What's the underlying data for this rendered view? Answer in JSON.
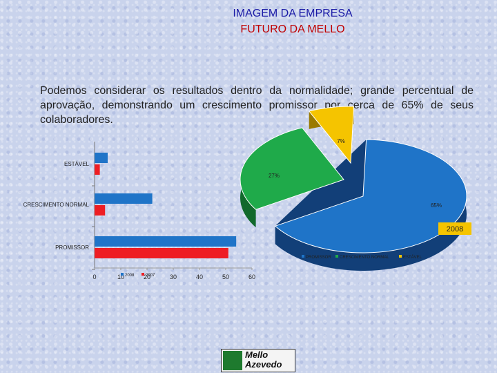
{
  "header": {
    "title": "IMAGEM DA EMPRESA",
    "subtitle": "FUTURO DA MELLO"
  },
  "body_text": "Podemos considerar os resultados dentro da normalidade; grande percentual de aprovação, demonstrando um crescimento promissor por cerca de 65% de seus colaboradores.",
  "logo": {
    "line1": "Mello",
    "line2": "Azevedo"
  },
  "colors": {
    "series_2008": "#1f74c8",
    "series_2007": "#ee1d23",
    "pie_green": "#1faa4a",
    "pie_yellow": "#f5c400",
    "pie_blue": "#1f74c8"
  },
  "chart_data": [
    {
      "type": "bar",
      "orientation": "horizontal",
      "categories": [
        "PROMISSOR",
        "CRESCIMENTO NORMAL",
        "ESTÁVEL"
      ],
      "series": [
        {
          "name": "2008",
          "values": [
            54,
            22,
            5
          ]
        },
        {
          "name": "2007",
          "values": [
            51,
            4,
            2
          ]
        }
      ],
      "xticks": [
        "0",
        "10",
        "20",
        "30",
        "40",
        "50",
        "60"
      ],
      "xlim": [
        0,
        60
      ],
      "legend": "bottom"
    },
    {
      "type": "pie",
      "title": "2008",
      "labels": [
        "PROMISSOR",
        "CRESCIMENTO NORMAL",
        "ESTÁVEL"
      ],
      "values": [
        65,
        27,
        7
      ],
      "value_labels": [
        "65%",
        "27%",
        "7%"
      ],
      "legend": "bottom"
    }
  ]
}
